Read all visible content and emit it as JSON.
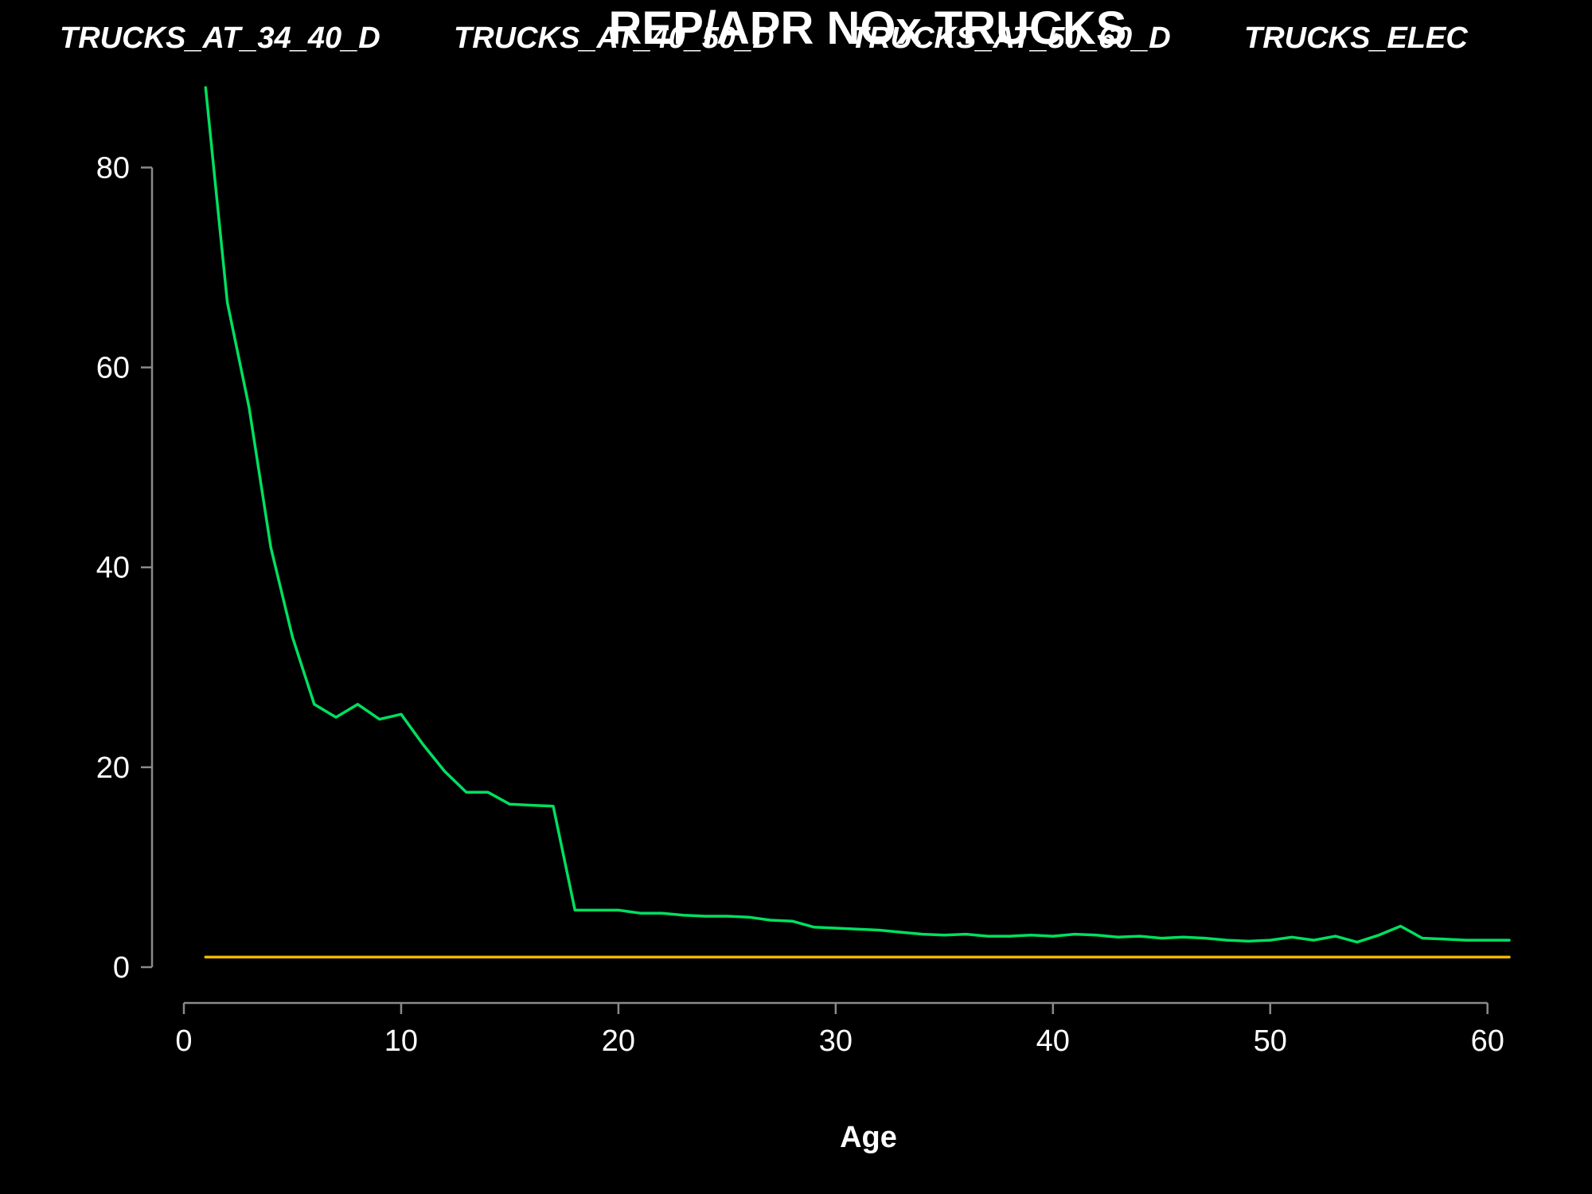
{
  "chart_data": {
    "type": "line",
    "title": "REP/APR NOx  TRUCKS",
    "xlabel": "Age",
    "ylabel": "",
    "xlim": [
      0,
      61
    ],
    "ylim": [
      0,
      88
    ],
    "x_ticks": [
      0,
      10,
      20,
      30,
      40,
      50,
      60
    ],
    "y_ticks": [
      0,
      20,
      40,
      60,
      80
    ],
    "legend_labels": [
      "TRUCKS_AT_34_40_D",
      "TRUCKS_AT_40_50_D",
      "TRUCKS_AT_50_60_D",
      "TRUCKS_ELEC"
    ],
    "legend_position": "top",
    "grid": false,
    "background": "#000000",
    "series": [
      {
        "color": "#00e060",
        "x": [
          1,
          2,
          3,
          4,
          5,
          6,
          7,
          8,
          9,
          10,
          11,
          12,
          13,
          14,
          15,
          16,
          17,
          18,
          19,
          20,
          21,
          22,
          23,
          24,
          25,
          26,
          27,
          28,
          29,
          30,
          31,
          32,
          33,
          34,
          35,
          36,
          37,
          38,
          39,
          40,
          41,
          42,
          43,
          44,
          45,
          46,
          47,
          48,
          49,
          50,
          51,
          52,
          53,
          54,
          55,
          56,
          57,
          58,
          59,
          60,
          61
        ],
        "y": [
          88,
          66.5,
          56,
          42,
          33,
          26.3,
          25,
          26.3,
          24.8,
          25.3,
          22.3,
          19.6,
          17.5,
          17.5,
          16.3,
          16.2,
          16.1,
          5.7,
          5.7,
          5.7,
          5.4,
          5.4,
          5.2,
          5.1,
          5.1,
          5.0,
          4.7,
          4.6,
          4.0,
          3.9,
          3.8,
          3.7,
          3.5,
          3.3,
          3.2,
          3.3,
          3.1,
          3.1,
          3.2,
          3.1,
          3.3,
          3.2,
          3.0,
          3.1,
          2.9,
          3.0,
          2.9,
          2.7,
          2.6,
          2.7,
          3.0,
          2.7,
          3.1,
          2.5,
          3.2,
          4.1,
          2.9,
          2.8,
          2.7,
          2.7,
          2.7
        ]
      },
      {
        "color": "#f0b800",
        "x": [
          1,
          61
        ],
        "y": [
          1,
          1
        ]
      }
    ]
  }
}
